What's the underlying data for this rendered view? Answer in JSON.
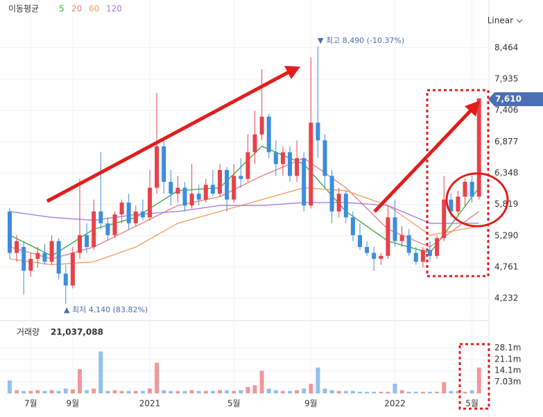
{
  "chart_data": {
    "type": "candlestick",
    "legend_title": "이동평균",
    "series": [
      {
        "name": "5",
        "color": "#3fae49",
        "x": [
          0,
          6,
          12,
          18,
          24,
          30,
          36,
          42,
          48,
          54,
          60,
          67
        ],
        "values": [
          5300,
          4950,
          5400,
          5600,
          6050,
          6100,
          6800,
          6500,
          5700,
          5200,
          5000,
          6100
        ]
      },
      {
        "name": "20",
        "color": "#f08080",
        "x": [
          0,
          6,
          12,
          18,
          24,
          30,
          36,
          42,
          48,
          54,
          60,
          67
        ],
        "values": [
          5100,
          4900,
          5100,
          5450,
          5800,
          5950,
          6300,
          6600,
          6100,
          5400,
          5100,
          5700
        ]
      },
      {
        "name": "60",
        "color": "#f5a060",
        "x": [
          0,
          6,
          12,
          18,
          24,
          30,
          36,
          42,
          48,
          54,
          60,
          67
        ],
        "values": [
          4900,
          4800,
          4850,
          5100,
          5500,
          5700,
          5900,
          6100,
          6050,
          5800,
          5300,
          5450
        ]
      },
      {
        "name": "120",
        "color": "#a77ee6",
        "x": [
          0,
          6,
          12,
          18,
          24,
          30,
          36,
          42,
          48,
          54,
          60,
          67
        ],
        "values": [
          5700,
          5600,
          5550,
          5650,
          5700,
          5800,
          5800,
          5850,
          5850,
          5800,
          5500,
          5500
        ]
      }
    ],
    "candles": [
      [
        5700,
        5750,
        4900,
        5000
      ],
      [
        5000,
        5300,
        4850,
        5200
      ],
      [
        5100,
        5200,
        4300,
        4700
      ],
      [
        4700,
        5000,
        4600,
        4900
      ],
      [
        4900,
        5100,
        4750,
        5000
      ],
      [
        5000,
        5150,
        4800,
        4850
      ],
      [
        4850,
        5300,
        4800,
        5200
      ],
      [
        5200,
        5250,
        4550,
        4650
      ],
      [
        4650,
        4800,
        4140,
        4450
      ],
      [
        4450,
        5100,
        4400,
        5000
      ],
      [
        5000,
        6250,
        4900,
        5300
      ],
      [
        5300,
        5500,
        5000,
        5100
      ],
      [
        5100,
        5900,
        5050,
        5700
      ],
      [
        5700,
        6700,
        5400,
        5500
      ],
      [
        5500,
        5600,
        5200,
        5300
      ],
      [
        5300,
        5700,
        5250,
        5650
      ],
      [
        5650,
        5900,
        5500,
        5850
      ],
      [
        5850,
        6000,
        5400,
        5500
      ],
      [
        5500,
        5800,
        5450,
        5700
      ],
      [
        5700,
        5900,
        5550,
        5600
      ],
      [
        5600,
        6400,
        5550,
        6100
      ],
      [
        6100,
        7700,
        6000,
        6800
      ],
      [
        6800,
        6900,
        6000,
        6200
      ],
      [
        6200,
        6400,
        5800,
        6000
      ],
      [
        6000,
        6300,
        5850,
        6100
      ],
      [
        6100,
        6200,
        5700,
        5800
      ],
      [
        5800,
        6500,
        5750,
        6000
      ],
      [
        6000,
        6150,
        5800,
        5900
      ],
      [
        5900,
        6250,
        5850,
        6150
      ],
      [
        6150,
        6400,
        5950,
        6000
      ],
      [
        6000,
        6500,
        5950,
        6400
      ],
      [
        6400,
        6450,
        5700,
        5900
      ],
      [
        5900,
        6500,
        5850,
        6300
      ],
      [
        6300,
        6600,
        6100,
        6250
      ],
      [
        6250,
        7000,
        6200,
        6700
      ],
      [
        6700,
        7400,
        6500,
        7000
      ],
      [
        7000,
        8100,
        6900,
        7300
      ],
      [
        7300,
        7350,
        6600,
        6700
      ],
      [
        6700,
        6900,
        6300,
        6500
      ],
      [
        6500,
        6800,
        6300,
        6700
      ],
      [
        6700,
        6800,
        6200,
        6300
      ],
      [
        6300,
        6900,
        6200,
        6600
      ],
      [
        6600,
        6700,
        5700,
        5800
      ],
      [
        5800,
        8300,
        5750,
        7200
      ],
      [
        7200,
        8490,
        6600,
        6900
      ],
      [
        6900,
        7000,
        6100,
        6300
      ],
      [
        6300,
        6400,
        5500,
        5700
      ],
      [
        5700,
        6100,
        5600,
        6000
      ],
      [
        6000,
        6050,
        5500,
        5600
      ],
      [
        5600,
        5700,
        5200,
        5300
      ],
      [
        5300,
        5500,
        5050,
        5100
      ],
      [
        5100,
        5200,
        4950,
        5000
      ],
      [
        5000,
        5100,
        4700,
        4900
      ],
      [
        4900,
        5000,
        4800,
        4950
      ],
      [
        4950,
        5800,
        4900,
        5600
      ],
      [
        5600,
        5900,
        5100,
        5200
      ],
      [
        5200,
        5450,
        5100,
        5300
      ],
      [
        5300,
        5400,
        4950,
        5000
      ],
      [
        5000,
        5100,
        4800,
        4850
      ],
      [
        4850,
        5100,
        4750,
        5050
      ],
      [
        5050,
        5200,
        4850,
        4950
      ],
      [
        4950,
        5300,
        4900,
        5250
      ],
      [
        5250,
        6300,
        5200,
        5900
      ],
      [
        5900,
        6000,
        5600,
        5700
      ],
      [
        5700,
        6050,
        5650,
        5950
      ],
      [
        5950,
        6250,
        5800,
        6200
      ],
      [
        6200,
        6300,
        5850,
        5950
      ],
      [
        5950,
        7610,
        5900,
        7610
      ]
    ],
    "up_color": "#e8414b",
    "down_color": "#3b8de0",
    "ylim": [
      3940,
      9270
    ],
    "yticks": [
      {
        "value": 4232,
        "label": "4,232"
      },
      {
        "value": 4761,
        "label": "4,761"
      },
      {
        "value": 5290,
        "label": "5,290"
      },
      {
        "value": 5819,
        "label": "5,819"
      },
      {
        "value": 6348,
        "label": "6,348"
      },
      {
        "value": 6877,
        "label": "6,877"
      },
      {
        "value": 7406,
        "label": "7,406"
      },
      {
        "value": 7935,
        "label": "7,935"
      },
      {
        "value": 8464,
        "label": "8,464"
      }
    ],
    "xticks": [
      {
        "value": 3,
        "label": "7월"
      },
      {
        "value": 9,
        "label": "9월"
      },
      {
        "value": 20,
        "label": "2021"
      },
      {
        "value": 32,
        "label": "5월"
      },
      {
        "value": 43,
        "label": "9월"
      },
      {
        "value": 55,
        "label": "2022"
      },
      {
        "value": 66,
        "label": "5월"
      }
    ],
    "scale": "Linear",
    "last_price_label": "7,610",
    "high_label": "▼ 최고 8,490 (-10.37%)",
    "low_label": "▲ 최저 4,140 (83.82%)",
    "volume_title": "거래량",
    "volume_total": "21,037,088",
    "volume": [
      8,
      2,
      1.5,
      1.5,
      2,
      1.5,
      2,
      1.5,
      3,
      2.5,
      15,
      2,
      3,
      26,
      1.5,
      2,
      1.5,
      1.5,
      1.5,
      1.5,
      3,
      19,
      2,
      1.5,
      1.5,
      1.5,
      2,
      1.5,
      1.5,
      1.5,
      2,
      2,
      1.5,
      2,
      4,
      5,
      14,
      3,
      2,
      1.5,
      1.5,
      2,
      3,
      6,
      16,
      3,
      2,
      1.5,
      1.5,
      1.5,
      1,
      1,
      1,
      1,
      1,
      6,
      2,
      1,
      1,
      1,
      1,
      1,
      7,
      1.5,
      1.5,
      1,
      2,
      16
    ],
    "volume_ylim": [
      0,
      41.7
    ],
    "volume_ticks": [
      {
        "value": 7.03,
        "label": "7.03m"
      },
      {
        "value": 14.1,
        "label": "14.1m"
      },
      {
        "value": 21.1,
        "label": "21.1m"
      },
      {
        "value": 28.1,
        "label": "28.1m"
      }
    ]
  }
}
